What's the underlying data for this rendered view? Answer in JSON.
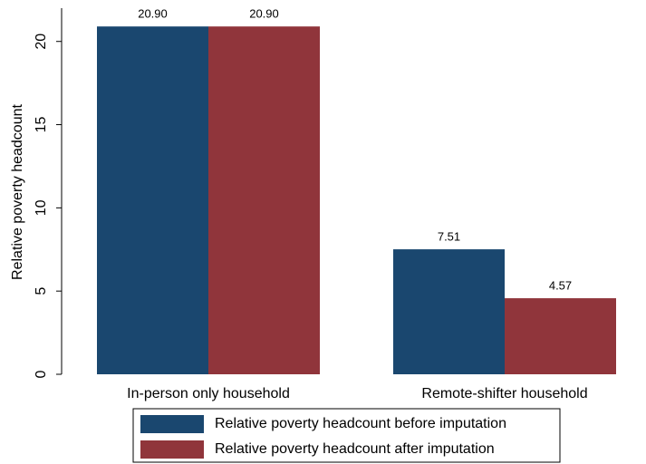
{
  "chart_data": {
    "type": "bar",
    "y_label": "Relative poverty headcount",
    "categories": [
      "In-person only household",
      "Remote-shifter household"
    ],
    "series": [
      {
        "name": "Relative poverty headcount before imputation",
        "color": "#1a476f",
        "values": [
          20.9,
          7.51
        ],
        "value_labels": [
          "20.90",
          "7.51"
        ]
      },
      {
        "name": "Relative poverty headcount after imputation",
        "color": "#90353b",
        "values": [
          20.9,
          4.57
        ],
        "value_labels": [
          "20.90",
          "4.57"
        ]
      }
    ],
    "ylim": [
      0,
      22
    ],
    "yticks": [
      0,
      5,
      10,
      15,
      20
    ],
    "grid": false
  }
}
